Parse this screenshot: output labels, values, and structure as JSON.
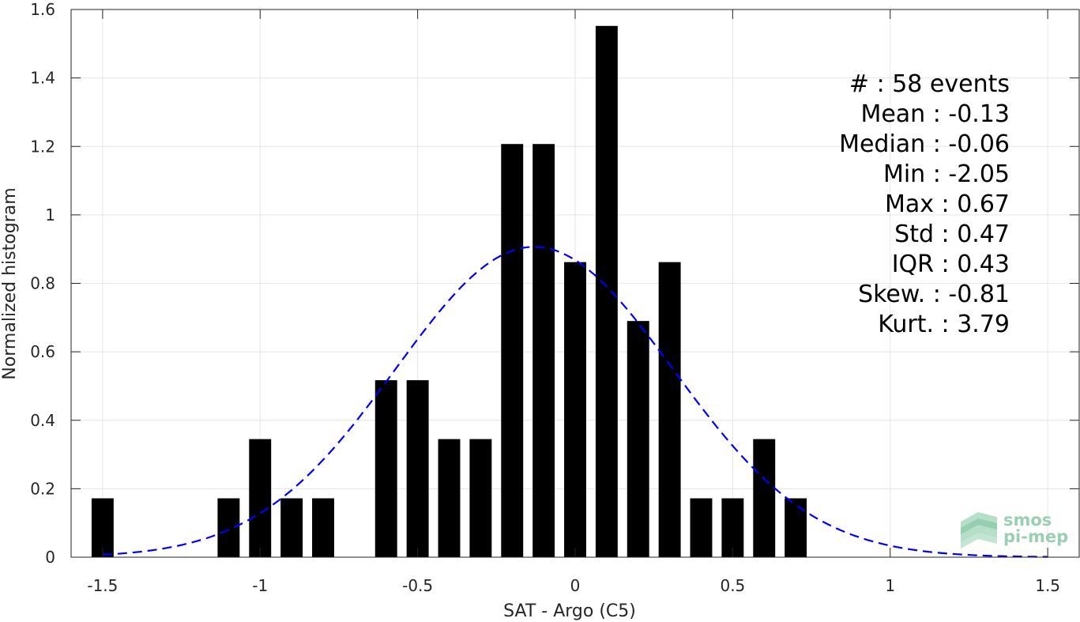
{
  "chart_data": {
    "type": "bar",
    "xlabel": "SAT - Argo (C5)",
    "ylabel": "Normalized histogram",
    "xlim": [
      -1.6,
      1.6
    ],
    "ylim": [
      0,
      1.6
    ],
    "grid": true,
    "x_ticks": [
      -1.5,
      -1,
      -0.5,
      0,
      0.5,
      1,
      1.5
    ],
    "x_tick_labels": [
      "-1.5",
      "-1",
      "-0.5",
      "0",
      "0.5",
      "1",
      "1.5"
    ],
    "y_ticks": [
      0,
      0.2,
      0.4,
      0.6,
      0.8,
      1,
      1.2,
      1.4,
      1.6
    ],
    "y_tick_labels": [
      "0",
      "0.2",
      "0.4",
      "0.6",
      "0.8",
      "1",
      "1.2",
      "1.4",
      "1.6"
    ],
    "bar_width": 0.07,
    "bar_color": "#000000",
    "bars": [
      {
        "x": -1.5,
        "value": 0.172
      },
      {
        "x": -1.1,
        "value": 0.172
      },
      {
        "x": -1.0,
        "value": 0.345
      },
      {
        "x": -0.9,
        "value": 0.172
      },
      {
        "x": -0.8,
        "value": 0.172
      },
      {
        "x": -0.6,
        "value": 0.517
      },
      {
        "x": -0.5,
        "value": 0.517
      },
      {
        "x": -0.4,
        "value": 0.345
      },
      {
        "x": -0.3,
        "value": 0.345
      },
      {
        "x": -0.2,
        "value": 1.207
      },
      {
        "x": -0.1,
        "value": 1.207
      },
      {
        "x": 0.0,
        "value": 0.862
      },
      {
        "x": 0.1,
        "value": 1.552
      },
      {
        "x": 0.2,
        "value": 0.69
      },
      {
        "x": 0.3,
        "value": 0.862
      },
      {
        "x": 0.4,
        "value": 0.172
      },
      {
        "x": 0.5,
        "value": 0.172
      },
      {
        "x": 0.6,
        "value": 0.345
      },
      {
        "x": 0.7,
        "value": 0.172
      }
    ],
    "fit_curve": {
      "type": "gaussian",
      "mean": -0.13,
      "std": 0.44,
      "x_range": [
        -1.5,
        1.5
      ],
      "color": "#0000ff",
      "dashed": true
    },
    "annotation_lines": [
      "#  : 58 events",
      "Mean : -0.13",
      "Median : -0.06",
      "Min : -2.05",
      "Max : 0.67",
      "Std : 0.47",
      "IQR : 0.43",
      "Skew. : -0.81",
      "Kurt. : 3.79"
    ]
  },
  "logo": {
    "line1": "smos",
    "line2": "pi-mep"
  }
}
